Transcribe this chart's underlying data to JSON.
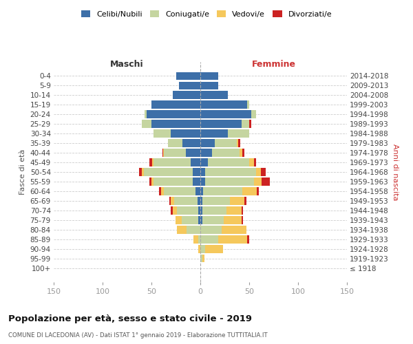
{
  "age_groups": [
    "100+",
    "95-99",
    "90-94",
    "85-89",
    "80-84",
    "75-79",
    "70-74",
    "65-69",
    "60-64",
    "55-59",
    "50-54",
    "45-49",
    "40-44",
    "35-39",
    "30-34",
    "25-29",
    "20-24",
    "15-19",
    "10-14",
    "5-9",
    "0-4"
  ],
  "birth_years": [
    "≤ 1918",
    "1919-1923",
    "1924-1928",
    "1929-1933",
    "1934-1938",
    "1939-1943",
    "1944-1948",
    "1949-1953",
    "1954-1958",
    "1959-1963",
    "1964-1968",
    "1969-1973",
    "1974-1978",
    "1979-1983",
    "1984-1988",
    "1989-1993",
    "1994-1998",
    "1999-2003",
    "2004-2008",
    "2009-2013",
    "2014-2018"
  ],
  "colors": {
    "celibi": "#3d6fa8",
    "coniugati": "#c5d5a0",
    "vedovi": "#f5c85c",
    "divorziati": "#cc2222"
  },
  "maschi_celibi": [
    0,
    0,
    0,
    0,
    0,
    2,
    2,
    3,
    5,
    8,
    8,
    10,
    15,
    18,
    30,
    50,
    55,
    50,
    28,
    22,
    25
  ],
  "maschi_coniugati": [
    0,
    0,
    0,
    2,
    14,
    17,
    22,
    24,
    32,
    40,
    50,
    38,
    22,
    15,
    18,
    10,
    2,
    0,
    0,
    0,
    0
  ],
  "maschi_vedovi": [
    0,
    0,
    2,
    5,
    10,
    6,
    4,
    3,
    3,
    2,
    2,
    1,
    1,
    0,
    0,
    0,
    0,
    0,
    0,
    0,
    0
  ],
  "maschi_divorz": [
    0,
    0,
    0,
    0,
    0,
    0,
    2,
    2,
    2,
    2,
    3,
    3,
    1,
    0,
    0,
    0,
    0,
    0,
    0,
    0,
    0
  ],
  "femmine_celibi": [
    0,
    0,
    0,
    0,
    0,
    2,
    2,
    2,
    3,
    5,
    5,
    8,
    12,
    15,
    28,
    42,
    52,
    48,
    28,
    18,
    18
  ],
  "femmine_coniugati": [
    0,
    2,
    5,
    18,
    22,
    22,
    25,
    28,
    40,
    50,
    52,
    42,
    28,
    22,
    22,
    8,
    5,
    2,
    0,
    0,
    0
  ],
  "femmine_vedovi": [
    0,
    2,
    18,
    30,
    25,
    18,
    15,
    15,
    15,
    8,
    5,
    5,
    3,
    2,
    0,
    0,
    0,
    0,
    0,
    0,
    0
  ],
  "femmine_divorz": [
    0,
    0,
    0,
    2,
    0,
    2,
    2,
    2,
    2,
    8,
    5,
    2,
    2,
    2,
    0,
    2,
    0,
    0,
    0,
    0,
    0
  ],
  "title": "Popolazione per età, sesso e stato civile - 2019",
  "subtitle": "COMUNE DI LACEDONIA (AV) - Dati ISTAT 1° gennaio 2019 - Elaborazione TUTTITALIA.IT",
  "xlabel_maschi": "Maschi",
  "xlabel_femmine": "Femmine",
  "ylabel_left": "Fasce di età",
  "ylabel_right": "Anni di nascita",
  "xlim": 150,
  "legend_labels": [
    "Celibi/Nubili",
    "Coniugati/e",
    "Vedovi/e",
    "Divorziati/e"
  ],
  "background_color": "#ffffff",
  "grid_color": "#cccccc"
}
